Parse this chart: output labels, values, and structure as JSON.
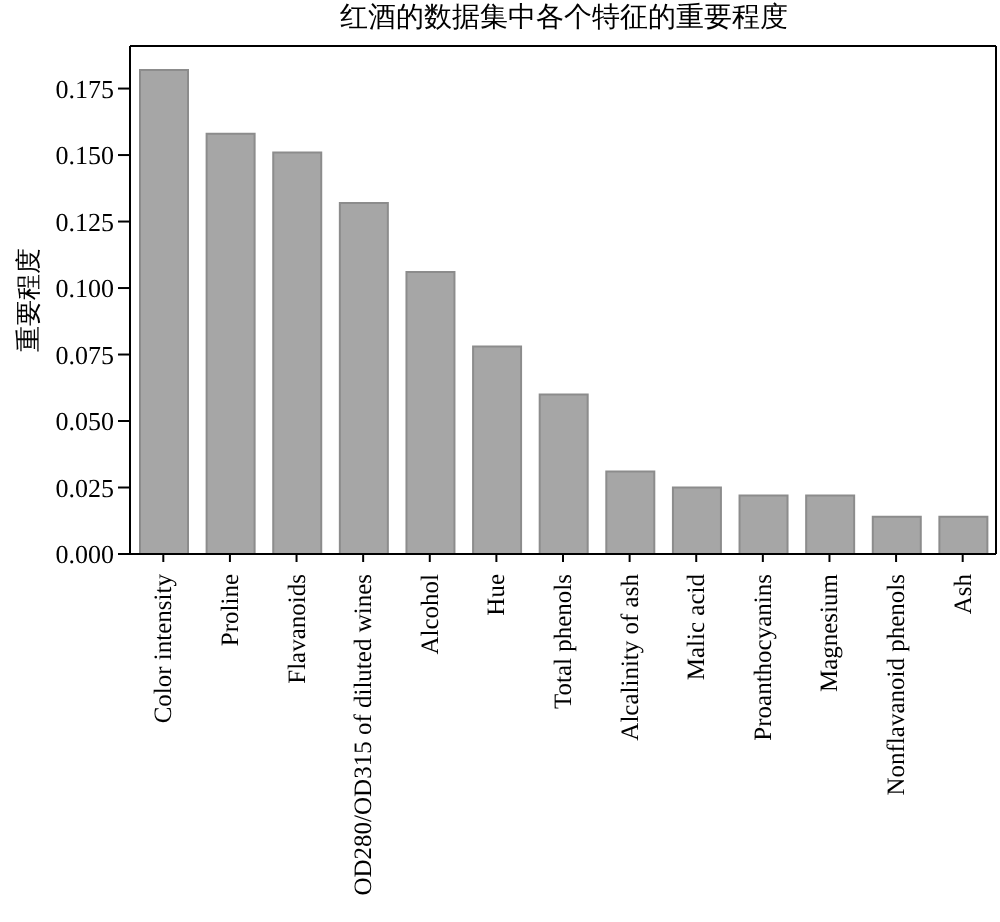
{
  "chart_data": {
    "type": "bar",
    "title": "红酒的数据集中各个特征的重要程度",
    "ylabel": "重要程度",
    "categories": [
      "Color intensity",
      "Proline",
      "Flavanoids",
      "OD280/OD315 of diluted wines",
      "Alcohol",
      "Hue",
      "Total phenols",
      "Alcalinity of ash",
      "Malic acid",
      "Proanthocyanins",
      "Magnesium",
      "Nonflavanoid phenols",
      "Ash"
    ],
    "values": [
      0.182,
      0.158,
      0.151,
      0.132,
      0.106,
      0.078,
      0.06,
      0.031,
      0.025,
      0.022,
      0.022,
      0.014,
      0.014
    ],
    "color": "#a6a6a6",
    "ylim": [
      0,
      0.191
    ],
    "yticks": [
      {
        "value": 0,
        "label": "0.000"
      },
      {
        "value": 0.025,
        "label": "0.025"
      },
      {
        "value": 0.05,
        "label": "0.050"
      },
      {
        "value": 0.075,
        "label": "0.075"
      },
      {
        "value": 0.1,
        "label": "0.100"
      },
      {
        "value": 0.125,
        "label": "0.125"
      },
      {
        "value": 0.15,
        "label": "0.150"
      },
      {
        "value": 0.175,
        "label": "0.175"
      }
    ],
    "grid": false
  }
}
